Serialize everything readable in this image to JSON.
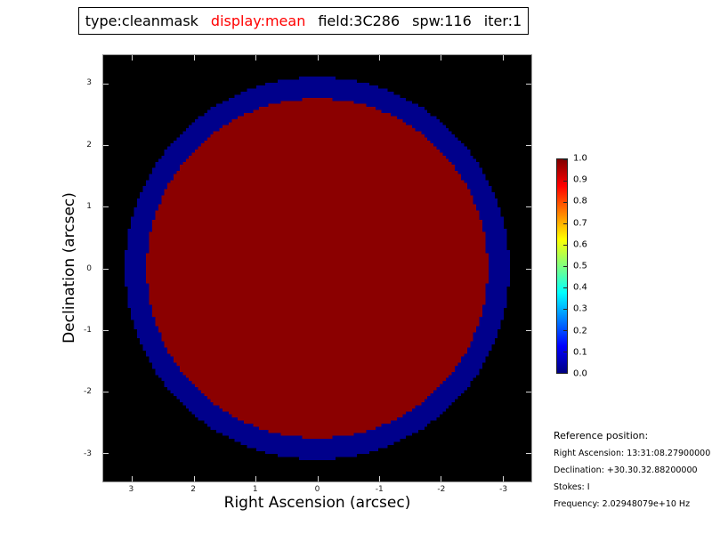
{
  "chart_data": {
    "type": "heatmap",
    "title": "type:cleanmask  display:mean  field:3C286  spw:116 iter:1",
    "title_segments": [
      {
        "text": "type:cleanmask",
        "color": "#000000"
      },
      {
        "text": "display:mean",
        "color": "#ff0000"
      },
      {
        "text": "field:3C286",
        "color": "#000000"
      },
      {
        "text": "spw:116",
        "color": "#000000"
      },
      {
        "text": "iter:1",
        "color": "#000000"
      }
    ],
    "xlabel": "Right Ascension (arcsec)",
    "ylabel": "Declination (arcsec)",
    "xlim": [
      3.465,
      -3.465
    ],
    "ylim": [
      -3.465,
      3.465
    ],
    "xticks": [
      3,
      2,
      1,
      0,
      -1,
      -2,
      -3
    ],
    "yticks": [
      3,
      2,
      1,
      0,
      -1,
      -2,
      -3
    ],
    "grid_size": 140,
    "background_color": "#000000",
    "regions": [
      {
        "name": "mask-core",
        "shape": "circle",
        "center_x": 0,
        "center_y": 0,
        "radius_arcsec": 2.76,
        "value": 1.0,
        "color": "#8b0000"
      },
      {
        "name": "mask-halo",
        "shape": "circle",
        "center_x": 0,
        "center_y": 0,
        "radius_arcsec": 3.11,
        "value": 0.0,
        "color": "#00008b"
      }
    ],
    "colorbar": {
      "min": 0.0,
      "max": 1.0,
      "colormap": "jet",
      "tick_labels": [
        "0.0",
        "0.1",
        "0.2",
        "0.3",
        "0.4",
        "0.5",
        "0.6",
        "0.7",
        "0.8",
        "0.9",
        "1.0"
      ],
      "gradient_stops": [
        {
          "offset": 0.0,
          "color": "#000080"
        },
        {
          "offset": 0.125,
          "color": "#0000ff"
        },
        {
          "offset": 0.375,
          "color": "#00ffff"
        },
        {
          "offset": 0.625,
          "color": "#ffff00"
        },
        {
          "offset": 0.875,
          "color": "#ff0000"
        },
        {
          "offset": 1.0,
          "color": "#800000"
        }
      ]
    }
  },
  "reference": {
    "heading": "Reference position:",
    "lines": [
      "Right Ascension: 13:31:08.27900000",
      "Declination: +30.30.32.88200000",
      "Stokes: I",
      "Frequency: 2.02948079e+10 Hz"
    ]
  }
}
